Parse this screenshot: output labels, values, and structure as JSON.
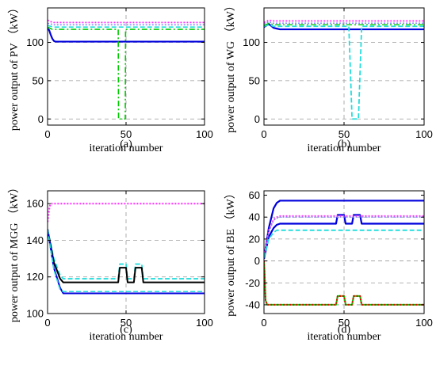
{
  "chart_data": [
    {
      "type": "line",
      "caption": "(a)",
      "xlabel": "iteration number",
      "ylabel": "power output of PV （kW）",
      "xlim": [
        0,
        100
      ],
      "ylim": [
        -8,
        145
      ],
      "xticks": [
        0,
        50,
        100
      ],
      "yticks": [
        0,
        50,
        100
      ],
      "dashed_y": [
        0,
        50,
        100
      ],
      "vline": 50,
      "series": [
        {
          "color": "#0000dd",
          "dash": "",
          "width": 2.2,
          "x": [
            0,
            1,
            2,
            3,
            4,
            5,
            100
          ],
          "y": [
            118,
            116,
            110,
            105,
            102,
            101,
            101
          ]
        },
        {
          "color": "#00cc00",
          "dash": "7,3,2,3",
          "width": 1.6,
          "x": [
            0,
            2,
            3,
            45,
            45.2,
            49.5,
            49.7,
            100
          ],
          "y": [
            120,
            118,
            117,
            117,
            0,
            0,
            117,
            117
          ]
        },
        {
          "color": "#22dddd",
          "dash": "6,3",
          "width": 1.6,
          "x": [
            0,
            2,
            4,
            100
          ],
          "y": [
            122,
            121,
            120,
            120
          ]
        },
        {
          "color": "#8888ff",
          "dash": "2,2",
          "width": 1.6,
          "x": [
            0,
            2,
            4,
            100
          ],
          "y": [
            125,
            124,
            123,
            123
          ]
        },
        {
          "color": "#ff33ff",
          "dash": "2,2",
          "width": 1.8,
          "x": [
            0,
            2,
            4,
            100
          ],
          "y": [
            129,
            127,
            126,
            126
          ]
        }
      ]
    },
    {
      "type": "line",
      "caption": "(b)",
      "xlabel": "iteration number",
      "ylabel": "power output of WG （kW）",
      "xlim": [
        0,
        100
      ],
      "ylim": [
        -8,
        145
      ],
      "xticks": [
        0,
        50,
        100
      ],
      "yticks": [
        0,
        50,
        100
      ],
      "dashed_y": [
        0,
        50,
        100
      ],
      "vline": 50,
      "series": [
        {
          "color": "#0000dd",
          "dash": "",
          "width": 2.2,
          "x": [
            0,
            3,
            6,
            8,
            10,
            100
          ],
          "y": [
            120,
            124,
            119,
            118,
            117,
            117
          ]
        },
        {
          "color": "#22dddd",
          "dash": "6,3",
          "width": 1.8,
          "x": [
            0,
            3,
            6,
            53,
            55,
            59,
            61,
            100
          ],
          "y": [
            121,
            123,
            121,
            121,
            0,
            0,
            121,
            121
          ]
        },
        {
          "color": "#00cc00",
          "dash": "7,3,2,3",
          "width": 1.4,
          "x": [
            0,
            3,
            6,
            100
          ],
          "y": [
            122,
            125,
            123,
            123
          ]
        },
        {
          "color": "#8888ff",
          "dash": "2,2",
          "width": 1.6,
          "x": [
            0,
            3,
            6,
            100
          ],
          "y": [
            124,
            127,
            125,
            125
          ]
        },
        {
          "color": "#ff33ff",
          "dash": "2,2",
          "width": 1.8,
          "x": [
            0,
            3,
            6,
            100
          ],
          "y": [
            126,
            129,
            128,
            128
          ]
        }
      ]
    },
    {
      "type": "line",
      "caption": "(c)",
      "xlabel": "iteration number",
      "ylabel": "power output of MGG （kW）",
      "xlim": [
        0,
        100
      ],
      "ylim": [
        100,
        167
      ],
      "xticks": [
        0,
        50,
        100
      ],
      "yticks": [
        100,
        120,
        140,
        160
      ],
      "dashed_y": [
        100,
        120,
        140
      ],
      "vline": 50,
      "series": [
        {
          "color": "#ff33ff",
          "dash": "2,2",
          "width": 2.2,
          "x": [
            0,
            1.2,
            2,
            100
          ],
          "y": [
            150,
            158,
            160,
            160
          ]
        },
        {
          "color": "#22dddd",
          "dash": "6,3",
          "width": 1.8,
          "x": [
            0,
            4,
            8,
            10,
            45,
            46,
            50,
            51,
            55,
            56,
            60,
            61,
            100
          ],
          "y": [
            146,
            130,
            121,
            119,
            119,
            127,
            127,
            119,
            119,
            127,
            127,
            119,
            119
          ]
        },
        {
          "color": "#000000",
          "dash": "",
          "width": 2.0,
          "x": [
            0,
            4,
            8,
            10,
            45,
            46,
            50,
            51,
            55,
            56,
            60,
            61,
            100
          ],
          "y": [
            146,
            128,
            119,
            117,
            117,
            125,
            125,
            117,
            117,
            125,
            125,
            117,
            117
          ]
        },
        {
          "color": "#0000dd",
          "dash": "",
          "width": 2.0,
          "x": [
            0,
            4,
            8,
            10,
            100
          ],
          "y": [
            146,
            125,
            114,
            111,
            111
          ]
        },
        {
          "color": "#22dddd",
          "dash": "6,3",
          "width": 1.6,
          "x": [
            0,
            4,
            8,
            10,
            100
          ],
          "y": [
            146,
            124,
            113,
            112,
            112
          ]
        }
      ]
    },
    {
      "type": "line",
      "caption": "(d)",
      "xlabel": "iteration number",
      "ylabel": "power output of BE （kW）",
      "xlim": [
        0,
        100
      ],
      "ylim": [
        -48,
        64
      ],
      "xticks": [
        0,
        50,
        100
      ],
      "yticks": [
        -40,
        -20,
        0,
        20,
        40,
        60
      ],
      "dashed_y": [
        -40,
        -20,
        0,
        20,
        40
      ],
      "vline": 50,
      "series": [
        {
          "color": "#0000dd",
          "dash": "",
          "width": 2.2,
          "x": [
            0,
            3,
            6,
            8,
            10,
            100
          ],
          "y": [
            2,
            30,
            48,
            53,
            55,
            55
          ]
        },
        {
          "color": "#0000dd",
          "dash": "",
          "width": 2.2,
          "x": [
            0,
            3,
            6,
            8,
            10,
            45,
            46,
            50,
            51,
            55,
            56,
            60,
            61,
            100
          ],
          "y": [
            2,
            22,
            30,
            33,
            34,
            34,
            42,
            42,
            34,
            34,
            42,
            42,
            34,
            34
          ]
        },
        {
          "color": "#ff33ff",
          "dash": "2,2",
          "width": 1.8,
          "x": [
            0,
            3,
            6,
            8,
            10,
            100
          ],
          "y": [
            5,
            28,
            38,
            40,
            41,
            41
          ]
        },
        {
          "color": "#8888ff",
          "dash": "2,2",
          "width": 1.4,
          "x": [
            0,
            3,
            6,
            8,
            10,
            100
          ],
          "y": [
            4,
            26,
            37,
            39,
            40,
            40
          ]
        },
        {
          "color": "#22dddd",
          "dash": "6,3",
          "width": 1.8,
          "x": [
            0,
            3,
            6,
            8,
            10,
            100
          ],
          "y": [
            3,
            20,
            26,
            28,
            28,
            28
          ]
        },
        {
          "color": "#00cc00",
          "dash": "",
          "width": 2.0,
          "x": [
            0,
            0.3,
            1,
            2,
            45,
            46,
            50,
            51,
            55,
            56,
            60,
            61,
            100
          ],
          "y": [
            0,
            -8,
            -36,
            -40,
            -40,
            -32,
            -32,
            -40,
            -40,
            -32,
            -32,
            -40,
            -40
          ]
        },
        {
          "color": "#ee0000",
          "dash": "2,2",
          "width": 2.0,
          "x": [
            0,
            0.3,
            1,
            2,
            45,
            46,
            50,
            51,
            55,
            56,
            60,
            61,
            100
          ],
          "y": [
            0,
            -8,
            -36,
            -40,
            -40,
            -32,
            -32,
            -40,
            -40,
            -32,
            -32,
            -40,
            -40
          ]
        }
      ]
    }
  ]
}
